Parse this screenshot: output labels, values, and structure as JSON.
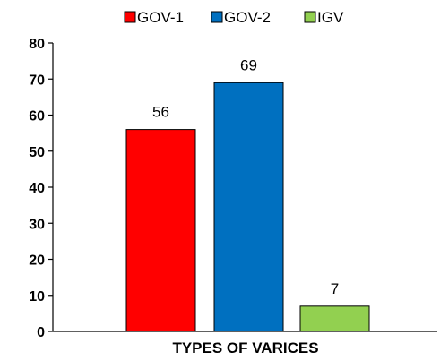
{
  "chart_data": {
    "type": "bar",
    "title": "",
    "xlabel": "TYPES OF VARICES",
    "ylabel": "",
    "ylim": [
      0,
      80
    ],
    "yticks": [
      0,
      10,
      20,
      30,
      40,
      50,
      60,
      70,
      80
    ],
    "grid": false,
    "legend_position": "top",
    "series": [
      {
        "name": "GOV-1",
        "value": 56,
        "color": "#ff0000"
      },
      {
        "name": "GOV-2",
        "value": 69,
        "color": "#0070c0"
      },
      {
        "name": "IGV",
        "value": 7,
        "color": "#92d050"
      }
    ]
  }
}
